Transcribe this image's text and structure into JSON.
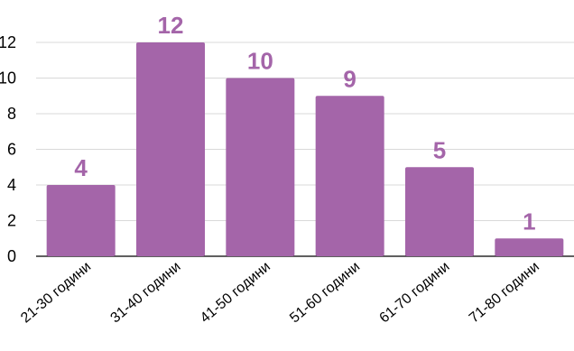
{
  "chart_data": {
    "type": "bar",
    "categories": [
      "21-30 години",
      "31-40 години",
      "41-50 години",
      "51-60 години",
      "61-70 години",
      "71-80 години"
    ],
    "values": [
      4,
      12,
      10,
      9,
      5,
      1
    ],
    "ylim": [
      0,
      12
    ],
    "yticks": [
      0,
      2,
      4,
      6,
      8,
      10,
      12
    ],
    "ytick_labels": [
      "0",
      "2",
      "4",
      "6",
      "8",
      "10",
      "12"
    ],
    "grid": true,
    "data_labels": true,
    "legend": "none",
    "colors": {
      "bar": "#A465A9",
      "data_label": "#A465A9",
      "grid": "#D9D9D9",
      "axis": "#000000"
    }
  }
}
